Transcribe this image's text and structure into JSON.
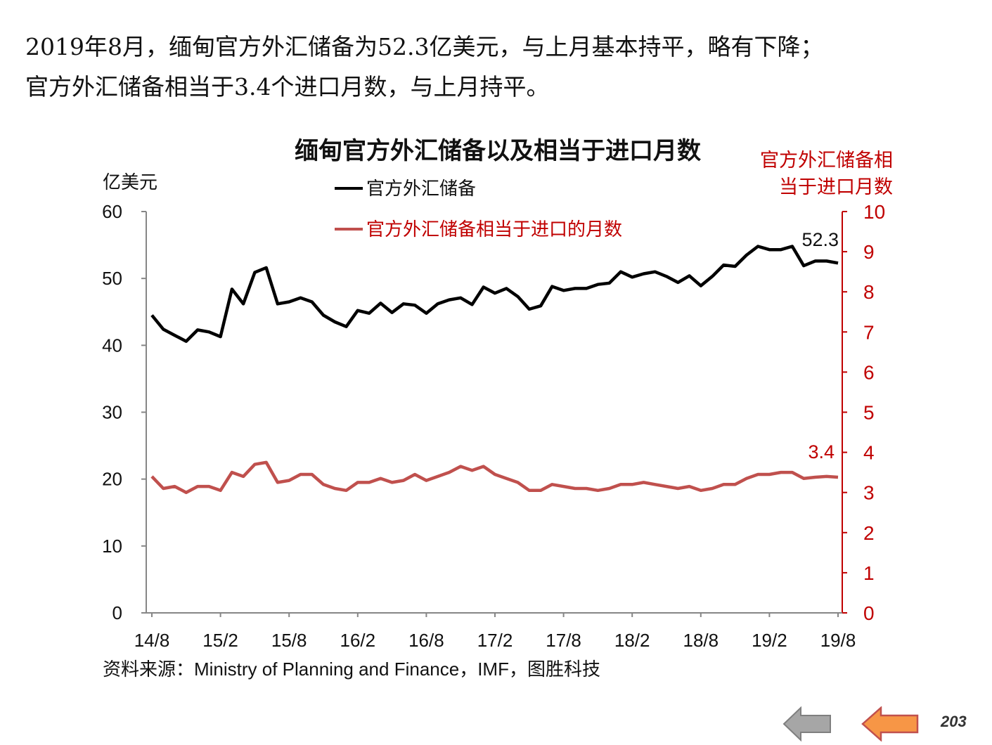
{
  "intro": {
    "line1": "2019年8月，缅甸官方外汇储备为52.3亿美元，与上月基本持平，略有下降；",
    "line2": "官方外汇储备相当于3.4个进口月数，与上月持平。"
  },
  "chart_data": {
    "type": "line",
    "title": "缅甸官方外汇储备以及相当于进口月数",
    "ylabel_left": "亿美元",
    "ylabel_right_line1": "官方外汇储备相",
    "ylabel_right_line2": "当于进口月数",
    "ylim_left": [
      0,
      60
    ],
    "ylim_right": [
      0,
      10
    ],
    "yticks_left": [
      "0",
      "10",
      "20",
      "30",
      "40",
      "50",
      "60"
    ],
    "yticks_right": [
      "0",
      "1",
      "2",
      "3",
      "4",
      "5",
      "6",
      "7",
      "8",
      "9",
      "10"
    ],
    "xticks": [
      "14/8",
      "15/2",
      "15/8",
      "16/2",
      "16/8",
      "17/2",
      "17/8",
      "18/2",
      "18/8",
      "19/2",
      "19/8"
    ],
    "legend": "top-left",
    "grid": false,
    "series": [
      {
        "name": "官方外汇储备",
        "axis": "left",
        "color": "#000000",
        "end_label": "52.3",
        "values": [
          44.5,
          42.4,
          41.5,
          40.6,
          42.3,
          42.0,
          41.3,
          48.4,
          46.2,
          50.9,
          51.6,
          46.2,
          46.5,
          47.1,
          46.5,
          44.5,
          43.5,
          42.8,
          45.2,
          44.8,
          46.3,
          44.9,
          46.2,
          46.0,
          44.8,
          46.2,
          46.8,
          47.1,
          46.1,
          48.7,
          47.8,
          48.5,
          47.3,
          45.4,
          45.9,
          48.8,
          48.2,
          48.5,
          48.5,
          49.1,
          49.3,
          51.0,
          50.2,
          50.7,
          51.0,
          50.3,
          49.4,
          50.4,
          48.9,
          50.3,
          52.0,
          51.8,
          53.5,
          54.8,
          54.3,
          54.3,
          54.8,
          51.9,
          52.6,
          52.6,
          52.3
        ]
      },
      {
        "name": "官方外汇储备相当于进口的月数",
        "axis": "right",
        "color": "#c0504d",
        "end_label": "3.4",
        "values": [
          3.4,
          3.1,
          3.15,
          3.0,
          3.15,
          3.15,
          3.05,
          3.5,
          3.4,
          3.7,
          3.75,
          3.25,
          3.3,
          3.45,
          3.45,
          3.2,
          3.1,
          3.05,
          3.25,
          3.25,
          3.35,
          3.25,
          3.3,
          3.45,
          3.3,
          3.4,
          3.5,
          3.65,
          3.55,
          3.65,
          3.45,
          3.35,
          3.25,
          3.05,
          3.05,
          3.2,
          3.15,
          3.1,
          3.1,
          3.05,
          3.1,
          3.2,
          3.2,
          3.25,
          3.2,
          3.15,
          3.1,
          3.15,
          3.05,
          3.1,
          3.2,
          3.2,
          3.35,
          3.45,
          3.45,
          3.5,
          3.5,
          3.35,
          3.38,
          3.4,
          3.38
        ]
      }
    ]
  },
  "source": "资料来源：Ministry of Planning and Finance，IMF，图胜科技",
  "nav": {
    "prev_color": "#a6a6a6",
    "next_color": "#f79646"
  },
  "page_number": "203"
}
